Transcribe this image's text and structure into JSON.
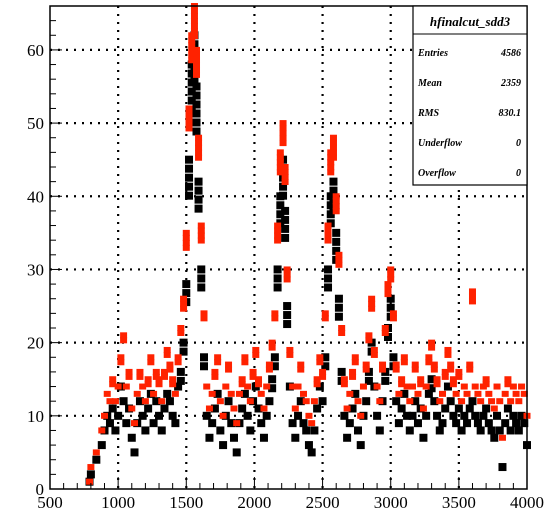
{
  "chart_data": {
    "type": "scatter",
    "title": "",
    "xlabel": "",
    "ylabel": "",
    "xlim": [
      500,
      4000
    ],
    "ylim": [
      0,
      66
    ],
    "x_ticks": [
      500,
      1000,
      1500,
      2000,
      2500,
      3000,
      3500,
      4000
    ],
    "y_ticks": [
      0,
      10,
      20,
      30,
      40,
      50,
      60
    ],
    "grid": true,
    "colors": {
      "series_black": "#000000",
      "series_red": "#ff2200"
    },
    "stats_box": {
      "title": "hfinalcut_sdd3",
      "rows": [
        {
          "label": "Entries",
          "value": "4586"
        },
        {
          "label": "Mean",
          "value": "2359"
        },
        {
          "label": "RMS",
          "value": "830.1"
        },
        {
          "label": "Underflow",
          "value": "0"
        },
        {
          "label": "Overflow",
          "value": "0"
        }
      ]
    },
    "series": [
      {
        "color": "#000000",
        "x": [
          500,
          550,
          600,
          650,
          700,
          750,
          790,
          800,
          840,
          880,
          900,
          920,
          940,
          960,
          980,
          1000,
          1020,
          1040,
          1060,
          1080,
          1100,
          1120,
          1140,
          1160,
          1180,
          1200,
          1220,
          1240,
          1260,
          1280,
          1300,
          1320,
          1340,
          1360,
          1380,
          1400,
          1420,
          1440,
          1460,
          1480,
          1500,
          1520,
          1540,
          1560,
          1575,
          1590,
          1610,
          1630,
          1650,
          1670,
          1690,
          1710,
          1730,
          1750,
          1770,
          1790,
          1810,
          1830,
          1850,
          1870,
          1890,
          1910,
          1930,
          1950,
          1970,
          1990,
          2010,
          2030,
          2050,
          2070,
          2090,
          2110,
          2130,
          2150,
          2170,
          2190,
          2210,
          2225,
          2240,
          2260,
          2280,
          2300,
          2320,
          2340,
          2360,
          2380,
          2400,
          2420,
          2440,
          2460,
          2480,
          2500,
          2520,
          2540,
          2560,
          2580,
          2600,
          2620,
          2640,
          2660,
          2680,
          2700,
          2720,
          2740,
          2760,
          2780,
          2800,
          2820,
          2840,
          2860,
          2880,
          2900,
          2920,
          2940,
          2960,
          2980,
          3000,
          3020,
          3040,
          3060,
          3080,
          3100,
          3120,
          3140,
          3160,
          3180,
          3200,
          3220,
          3240,
          3260,
          3280,
          3300,
          3320,
          3340,
          3360,
          3380,
          3400,
          3420,
          3440,
          3460,
          3480,
          3500,
          3520,
          3540,
          3560,
          3580,
          3600,
          3620,
          3640,
          3660,
          3680,
          3700,
          3720,
          3740,
          3760,
          3780,
          3800,
          3820,
          3840,
          3860,
          3880,
          3900,
          3920,
          3940,
          3960,
          3980,
          4000
        ],
        "y": [
          0,
          0,
          0,
          0,
          0,
          0,
          1,
          2,
          4,
          6,
          8,
          10,
          9,
          11,
          8,
          10,
          14,
          12,
          9,
          11,
          7,
          5,
          9,
          12,
          10,
          8,
          11,
          13,
          9,
          12,
          10,
          8,
          11,
          13,
          12,
          10,
          9,
          14,
          16,
          20,
          28,
          45,
          58,
          62,
          55,
          42,
          30,
          18,
          10,
          7,
          9,
          11,
          13,
          8,
          6,
          10,
          12,
          9,
          7,
          5,
          9,
          11,
          13,
          10,
          8,
          12,
          14,
          11,
          9,
          7,
          10,
          12,
          15,
          18,
          30,
          40,
          45,
          38,
          25,
          14,
          9,
          7,
          10,
          12,
          9,
          8,
          6,
          5,
          8,
          11,
          14,
          12,
          18,
          30,
          40,
          42,
          35,
          26,
          16,
          10,
          7,
          9,
          11,
          13,
          8,
          6,
          10,
          12,
          16,
          20,
          14,
          10,
          8,
          12,
          16,
          22,
          26,
          18,
          12,
          9,
          11,
          13,
          10,
          8,
          10,
          12,
          9,
          11,
          7,
          10,
          13,
          15,
          12,
          10,
          8,
          9,
          11,
          14,
          12,
          10,
          9,
          11,
          8,
          10,
          9,
          11,
          12,
          10,
          9,
          8,
          10,
          11,
          9,
          8,
          7,
          10,
          8,
          3,
          9,
          11,
          8,
          10,
          9,
          8,
          10,
          9,
          6
        ]
      },
      {
        "color": "#ff2200",
        "x": [
          500,
          550,
          600,
          650,
          700,
          750,
          790,
          800,
          840,
          880,
          900,
          920,
          940,
          960,
          980,
          1000,
          1020,
          1040,
          1060,
          1080,
          1100,
          1120,
          1140,
          1160,
          1180,
          1200,
          1220,
          1240,
          1260,
          1280,
          1300,
          1320,
          1340,
          1360,
          1380,
          1400,
          1420,
          1440,
          1460,
          1480,
          1500,
          1520,
          1540,
          1560,
          1575,
          1590,
          1610,
          1630,
          1650,
          1670,
          1690,
          1710,
          1730,
          1750,
          1770,
          1790,
          1810,
          1830,
          1850,
          1870,
          1890,
          1910,
          1930,
          1950,
          1970,
          1990,
          2010,
          2030,
          2050,
          2070,
          2090,
          2110,
          2130,
          2150,
          2170,
          2190,
          2210,
          2225,
          2240,
          2260,
          2280,
          2300,
          2320,
          2340,
          2360,
          2380,
          2400,
          2420,
          2440,
          2460,
          2480,
          2500,
          2520,
          2540,
          2560,
          2580,
          2600,
          2620,
          2640,
          2660,
          2680,
          2700,
          2720,
          2740,
          2760,
          2780,
          2800,
          2820,
          2840,
          2860,
          2880,
          2900,
          2920,
          2940,
          2960,
          2980,
          3000,
          3020,
          3040,
          3060,
          3080,
          3100,
          3120,
          3140,
          3160,
          3180,
          3200,
          3220,
          3240,
          3260,
          3280,
          3300,
          3320,
          3340,
          3360,
          3380,
          3400,
          3420,
          3440,
          3460,
          3480,
          3500,
          3520,
          3540,
          3560,
          3580,
          3600,
          3620,
          3640,
          3660,
          3680,
          3700,
          3720,
          3740,
          3760,
          3780,
          3800,
          3820,
          3840,
          3860,
          3880,
          3900,
          3920,
          3940,
          3960,
          3980,
          4000
        ],
        "y": [
          0,
          0,
          0,
          0,
          0,
          0,
          1,
          3,
          5,
          8,
          10,
          13,
          12,
          15,
          12,
          14,
          18,
          21,
          14,
          16,
          11,
          9,
          13,
          16,
          14,
          12,
          15,
          18,
          13,
          16,
          15,
          12,
          16,
          19,
          17,
          15,
          13,
          18,
          22,
          26,
          35,
          52,
          62,
          66,
          60,
          48,
          36,
          24,
          14,
          11,
          13,
          16,
          18,
          12,
          10,
          14,
          17,
          13,
          11,
          9,
          13,
          15,
          18,
          14,
          12,
          16,
          19,
          15,
          13,
          11,
          14,
          17,
          20,
          24,
          36,
          46,
          50,
          44,
          30,
          19,
          14,
          11,
          14,
          17,
          13,
          12,
          10,
          9,
          12,
          15,
          18,
          16,
          24,
          36,
          46,
          48,
          40,
          32,
          22,
          15,
          11,
          13,
          16,
          18,
          12,
          10,
          14,
          17,
          21,
          26,
          19,
          14,
          12,
          17,
          22,
          28,
          30,
          24,
          17,
          13,
          15,
          18,
          14,
          12,
          14,
          17,
          13,
          15,
          11,
          14,
          18,
          20,
          17,
          15,
          12,
          13,
          16,
          19,
          17,
          15,
          13,
          16,
          12,
          14,
          13,
          17,
          27,
          14,
          13,
          12,
          14,
          15,
          13,
          12,
          11,
          14,
          12,
          7,
          13,
          15,
          12,
          14,
          13,
          12,
          14,
          13,
          10
        ]
      }
    ]
  }
}
